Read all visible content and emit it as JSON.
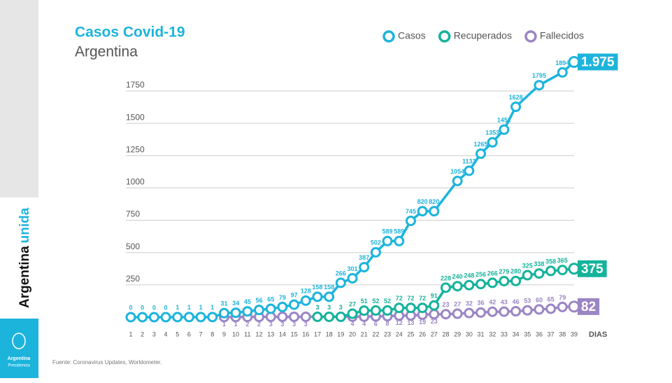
{
  "chart_data": {
    "type": "line",
    "title": "Casos Covid-19",
    "subtitle": "Argentina",
    "x_label": "DIAS",
    "xlim": [
      1,
      39
    ],
    "xticks": [
      1,
      2,
      3,
      4,
      5,
      6,
      7,
      8,
      9,
      10,
      11,
      12,
      13,
      14,
      15,
      16,
      17,
      18,
      19,
      20,
      21,
      22,
      23,
      24,
      25,
      26,
      27,
      28,
      29,
      30,
      31,
      32,
      33,
      34,
      35,
      36,
      37,
      38,
      39
    ],
    "ylim": [
      0,
      1750
    ],
    "yticks": [
      250,
      500,
      750,
      1000,
      1250,
      1500,
      1750
    ],
    "grid": true,
    "legend": "top-right",
    "series": [
      {
        "name": "Casos",
        "color": "#1db4dc",
        "x": [
          1,
          2,
          3,
          4,
          5,
          6,
          7,
          8,
          9,
          10,
          11,
          12,
          13,
          14,
          15,
          16,
          17,
          18,
          19,
          20,
          21,
          22,
          23,
          24,
          25,
          26,
          27,
          29,
          30,
          31,
          32,
          33,
          34,
          36,
          38,
          39
        ],
        "values": [
          0,
          0,
          0,
          0,
          1,
          1,
          1,
          1,
          31,
          34,
          45,
          56,
          65,
          79,
          97,
          128,
          158,
          158,
          266,
          301,
          387,
          502,
          589,
          589,
          745,
          820,
          820,
          1054,
          1133,
          1265,
          1353,
          1451,
          1628,
          1795,
          1894,
          1975
        ],
        "value_labels": [
          "0",
          "0",
          "0",
          "0",
          "1",
          "1",
          "1",
          "1",
          "31",
          "34",
          "45",
          "56",
          "65",
          "79",
          "97",
          "128",
          "158",
          "158",
          "266",
          "301",
          "387",
          "502",
          "589",
          "589",
          "745",
          "820",
          "820",
          "1054",
          "1133",
          "1265",
          "1353",
          "1451",
          "1628",
          "1795",
          "1894",
          "1.975"
        ]
      },
      {
        "name": "Recuperados",
        "color": "#15b39b",
        "x": [
          17,
          18,
          19,
          20,
          21,
          22,
          23,
          24,
          25,
          26,
          27,
          28,
          29,
          30,
          31,
          32,
          33,
          34,
          35,
          36,
          37,
          38,
          39
        ],
        "values": [
          3,
          3,
          3,
          27,
          51,
          52,
          52,
          72,
          72,
          72,
          91,
          228,
          240,
          248,
          256,
          266,
          279,
          280,
          325,
          338,
          358,
          365,
          375
        ]
      },
      {
        "name": "Fallecidos",
        "color": "#9b86c4",
        "x": [
          9,
          10,
          11,
          12,
          13,
          14,
          15,
          16,
          20,
          21,
          22,
          23,
          24,
          25,
          26,
          27,
          28,
          29,
          30,
          31,
          32,
          33,
          34,
          35,
          36,
          37,
          38,
          39
        ],
        "values": [
          1,
          1,
          2,
          2,
          3,
          3,
          3,
          3,
          4,
          4,
          6,
          8,
          12,
          13,
          19,
          23,
          23,
          27,
          32,
          36,
          42,
          43,
          46,
          53,
          60,
          65,
          79,
          82
        ]
      }
    ]
  },
  "sidebar": {
    "brand": [
      "Argentina",
      "unida"
    ],
    "logo": [
      "Argentina",
      "Presidencia"
    ]
  },
  "footer": {
    "source": "Fuente: Coronavirus Updates, Worldometer."
  }
}
